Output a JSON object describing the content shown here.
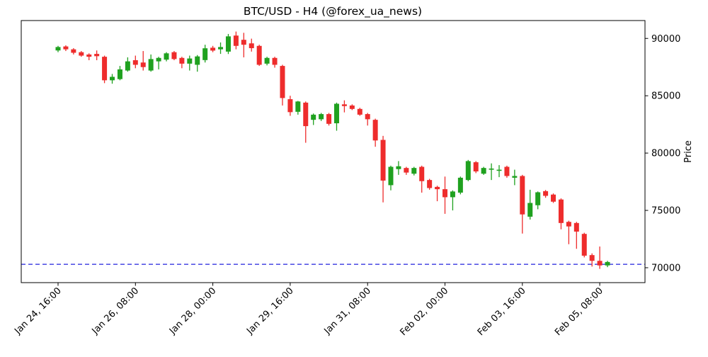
{
  "chart_data": {
    "type": "candlestick",
    "title": "BTC/USD - H4 (@forex_ua_news)",
    "ylabel": "Price",
    "ylim": [
      68700,
      91560
    ],
    "y_ticks": [
      70000,
      75000,
      80000,
      85000,
      90000
    ],
    "x_tick_positions": [
      0,
      10,
      20,
      30,
      40,
      50,
      60,
      70
    ],
    "x_tick_labels": [
      "Jan 24, 16:00",
      "Jan 26, 08:00",
      "Jan 28, 00:00",
      "Jan 29, 16:00",
      "Jan 31, 08:00",
      "Feb 02, 00:00",
      "Feb 03, 16:00",
      "Feb 05, 08:00"
    ],
    "up_color": "#1fa11f",
    "down_color": "#ee2c2c",
    "axis_color": "#000000",
    "background_color": "#ffffff",
    "support_line": {
      "value": 70300,
      "color": "#2222dd",
      "style": "dashed"
    },
    "candles": [
      [
        88950,
        89350,
        88800,
        89250
      ],
      [
        89300,
        89400,
        88900,
        89050
      ],
      [
        89050,
        89150,
        88600,
        88750
      ],
      [
        88800,
        88900,
        88400,
        88500
      ],
      [
        88600,
        88700,
        88100,
        88400
      ],
      [
        88650,
        88950,
        88100,
        88450
      ],
      [
        88400,
        88500,
        86100,
        86350
      ],
      [
        86350,
        86900,
        86050,
        86650
      ],
      [
        86450,
        87600,
        86350,
        87300
      ],
      [
        87200,
        88350,
        87100,
        88000
      ],
      [
        88100,
        88500,
        87400,
        87700
      ],
      [
        87900,
        88900,
        87200,
        87500
      ],
      [
        87200,
        88600,
        87100,
        88200
      ],
      [
        88000,
        88400,
        87300,
        88300
      ],
      [
        88150,
        88800,
        88000,
        88700
      ],
      [
        88800,
        88900,
        88100,
        88200
      ],
      [
        88300,
        88400,
        87400,
        87800
      ],
      [
        87800,
        88500,
        87200,
        88250
      ],
      [
        87700,
        88550,
        87100,
        88430
      ],
      [
        88110,
        89450,
        87900,
        89140
      ],
      [
        89190,
        89350,
        88800,
        88940
      ],
      [
        89050,
        89650,
        88650,
        89250
      ],
      [
        88850,
        90390,
        88640,
        90180
      ],
      [
        90250,
        90600,
        89050,
        89350
      ],
      [
        89880,
        90490,
        88350,
        89450
      ],
      [
        89570,
        89980,
        88850,
        89150
      ],
      [
        89350,
        89450,
        87600,
        87700
      ],
      [
        87800,
        88400,
        87650,
        88300
      ],
      [
        88300,
        88400,
        87450,
        87700
      ],
      [
        87600,
        87700,
        84150,
        84800
      ],
      [
        84700,
        85000,
        83250,
        83570
      ],
      [
        83600,
        84550,
        83350,
        84500
      ],
      [
        84400,
        84500,
        80900,
        82350
      ],
      [
        82900,
        83450,
        82450,
        83350
      ],
      [
        82950,
        83500,
        82800,
        83400
      ],
      [
        83400,
        83500,
        82400,
        82550
      ],
      [
        82600,
        84400,
        81950,
        84300
      ],
      [
        84250,
        84600,
        83550,
        84100
      ],
      [
        84150,
        84250,
        83750,
        83850
      ],
      [
        83850,
        83950,
        83250,
        83350
      ],
      [
        83400,
        83500,
        82400,
        82950
      ],
      [
        82900,
        83000,
        80550,
        81100
      ],
      [
        81150,
        81500,
        75700,
        77600
      ],
      [
        77200,
        78900,
        76750,
        78800
      ],
      [
        78600,
        79300,
        78100,
        78850
      ],
      [
        78700,
        78800,
        78100,
        78300
      ],
      [
        78200,
        78800,
        78050,
        78700
      ],
      [
        78800,
        78900,
        76550,
        77550
      ],
      [
        77650,
        77750,
        76800,
        76950
      ],
      [
        77050,
        77150,
        75800,
        76850
      ],
      [
        76850,
        77950,
        74700,
        76150
      ],
      [
        76150,
        76750,
        75000,
        76650
      ],
      [
        76550,
        77950,
        76400,
        77850
      ],
      [
        77650,
        79400,
        77550,
        79300
      ],
      [
        79200,
        79300,
        78250,
        78400
      ],
      [
        78200,
        78800,
        78100,
        78700
      ],
      [
        78550,
        79100,
        77650,
        78650
      ],
      [
        78450,
        78950,
        77900,
        78550
      ],
      [
        78800,
        78900,
        77850,
        78000
      ],
      [
        77850,
        78550,
        77200,
        78000
      ],
      [
        78000,
        78100,
        72980,
        74650
      ],
      [
        74450,
        76800,
        74200,
        75650
      ],
      [
        75450,
        76650,
        75100,
        76580
      ],
      [
        76680,
        76780,
        76100,
        76270
      ],
      [
        76380,
        76480,
        75650,
        75760
      ],
      [
        75950,
        76050,
        73350,
        73900
      ],
      [
        74000,
        74100,
        72050,
        73600
      ],
      [
        73900,
        74000,
        71650,
        73150
      ],
      [
        72950,
        73050,
        70900,
        71050
      ],
      [
        71100,
        71250,
        70100,
        70600
      ],
      [
        70600,
        71850,
        69900,
        70200
      ],
      [
        70200,
        70600,
        70050,
        70500
      ]
    ]
  }
}
